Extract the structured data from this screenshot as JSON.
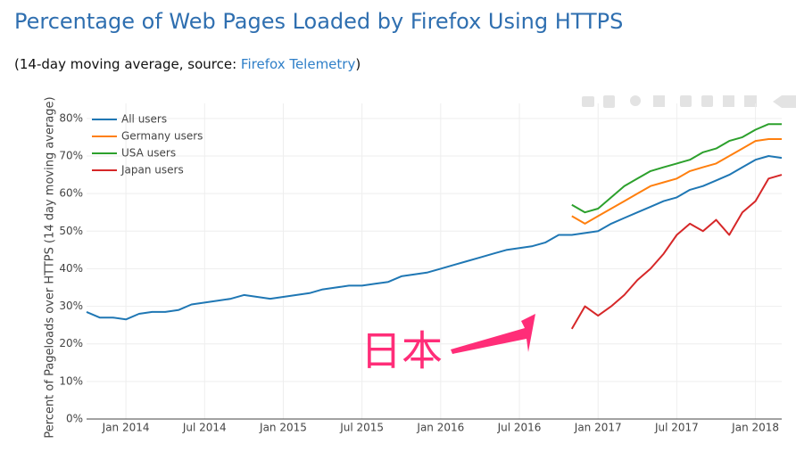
{
  "title": "Percentage of Web Pages Loaded by Firefox Using HTTPS",
  "subtitle": {
    "prefix": "(14-day moving average, source: ",
    "link": "Firefox Telemetry",
    "suffix": ")"
  },
  "chart_data": {
    "type": "line",
    "y_label": "Percent of Pageloads over HTTPS (14 day moving average)",
    "annotation": "日本",
    "x": [
      "2013-10",
      "2013-11",
      "2013-12",
      "2014-01",
      "2014-02",
      "2014-03",
      "2014-04",
      "2014-05",
      "2014-06",
      "2014-07",
      "2014-08",
      "2014-09",
      "2014-10",
      "2014-11",
      "2014-12",
      "2015-01",
      "2015-02",
      "2015-03",
      "2015-04",
      "2015-05",
      "2015-06",
      "2015-07",
      "2015-08",
      "2015-09",
      "2015-10",
      "2015-11",
      "2015-12",
      "2016-01",
      "2016-02",
      "2016-03",
      "2016-04",
      "2016-05",
      "2016-06",
      "2016-07",
      "2016-08",
      "2016-09",
      "2016-10",
      "2016-11",
      "2016-12",
      "2017-01",
      "2017-02",
      "2017-03",
      "2017-04",
      "2017-05",
      "2017-06",
      "2017-07",
      "2017-08",
      "2017-09",
      "2017-10",
      "2017-11",
      "2017-12",
      "2018-01",
      "2018-02",
      "2018-03"
    ],
    "series": [
      {
        "name": "All users",
        "color": "#1f77b4",
        "values": [
          28.5,
          27,
          27,
          26.5,
          28,
          28.5,
          28.5,
          29,
          30.5,
          31,
          31.5,
          32,
          33,
          32.5,
          32,
          32.5,
          33,
          33.5,
          34.5,
          35,
          35.5,
          35.5,
          36,
          36.5,
          38,
          38.5,
          39,
          40,
          41,
          42,
          43,
          44,
          45,
          45.5,
          46,
          47,
          49,
          49,
          49.5,
          50,
          52,
          53.5,
          55,
          56.5,
          58,
          59,
          61,
          62,
          63.5,
          65,
          67,
          69,
          70,
          69.5
        ]
      },
      {
        "name": "Germany users",
        "color": "#ff7f0e",
        "values": [
          null,
          null,
          null,
          null,
          null,
          null,
          null,
          null,
          null,
          null,
          null,
          null,
          null,
          null,
          null,
          null,
          null,
          null,
          null,
          null,
          null,
          null,
          null,
          null,
          null,
          null,
          null,
          null,
          null,
          null,
          null,
          null,
          null,
          null,
          null,
          null,
          null,
          54,
          52,
          54,
          56,
          58,
          60,
          62,
          63,
          64,
          66,
          67,
          68,
          70,
          72,
          74,
          74.5,
          74.5
        ]
      },
      {
        "name": "USA users",
        "color": "#2ca02c",
        "values": [
          null,
          null,
          null,
          null,
          null,
          null,
          null,
          null,
          null,
          null,
          null,
          null,
          null,
          null,
          null,
          null,
          null,
          null,
          null,
          null,
          null,
          null,
          null,
          null,
          null,
          null,
          null,
          null,
          null,
          null,
          null,
          null,
          null,
          null,
          null,
          null,
          null,
          57,
          55,
          56,
          59,
          62,
          64,
          66,
          67,
          68,
          69,
          71,
          72,
          74,
          75,
          77,
          78.5,
          78.5
        ]
      },
      {
        "name": "Japan users",
        "color": "#d62728",
        "values": [
          null,
          null,
          null,
          null,
          null,
          null,
          null,
          null,
          null,
          null,
          null,
          null,
          null,
          null,
          null,
          null,
          null,
          null,
          null,
          null,
          null,
          null,
          null,
          null,
          null,
          null,
          null,
          null,
          null,
          null,
          null,
          null,
          null,
          null,
          null,
          null,
          null,
          24,
          30,
          27.5,
          30,
          33,
          37,
          40,
          44,
          49,
          52,
          50,
          53,
          49,
          55,
          58,
          64,
          65
        ]
      }
    ],
    "xlim": [
      "2013-10",
      "2018-03"
    ],
    "xticks": [
      {
        "value": "2014-01",
        "label": "Jan 2014"
      },
      {
        "value": "2014-07",
        "label": "Jul 2014"
      },
      {
        "value": "2015-01",
        "label": "Jan 2015"
      },
      {
        "value": "2015-07",
        "label": "Jul 2015"
      },
      {
        "value": "2016-01",
        "label": "Jan 2016"
      },
      {
        "value": "2016-07",
        "label": "Jul 2016"
      },
      {
        "value": "2017-01",
        "label": "Jan 2017"
      },
      {
        "value": "2017-07",
        "label": "Jul 2017"
      },
      {
        "value": "2018-01",
        "label": "Jan 2018"
      }
    ],
    "ylim": [
      0,
      84
    ],
    "yticks": [
      {
        "value": 0,
        "label": "0%"
      },
      {
        "value": 10,
        "label": "10%"
      },
      {
        "value": 20,
        "label": "20%"
      },
      {
        "value": 30,
        "label": "30%"
      },
      {
        "value": 40,
        "label": "40%"
      },
      {
        "value": 50,
        "label": "50%"
      },
      {
        "value": 60,
        "label": "60%"
      },
      {
        "value": 70,
        "label": "70%"
      },
      {
        "value": 80,
        "label": "80%"
      }
    ],
    "grid": true,
    "legend": "top-left"
  }
}
